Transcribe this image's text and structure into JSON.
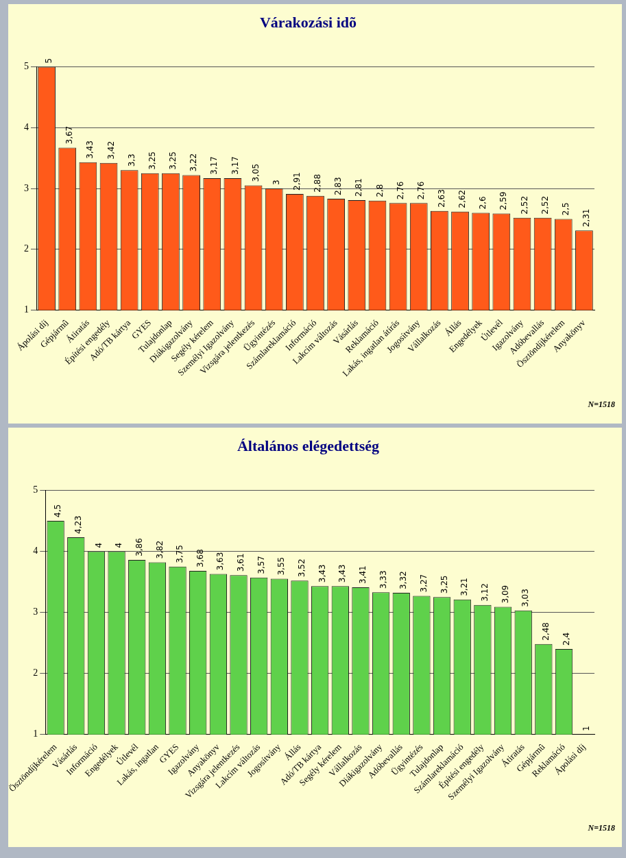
{
  "chart_data": [
    {
      "type": "bar",
      "title": "Várakozási idõ",
      "categories": [
        "Ápolási díj",
        "Gépjármû",
        "Átiratás",
        "Építési engedély",
        "Adó/TB kártya",
        "GYES",
        "Tulajdonlap",
        "Diákigazolvány",
        "Segély kérelem",
        "Személyi Igazolvány",
        "Vizsgára jelentkezés",
        "Ügyintézés",
        "Számlareklamáció",
        "Információ",
        "Lakcím változás",
        "Vásárlás",
        "Reklamáció",
        "Lakás, ingatlan átírás",
        "Jogosítvány",
        "Vállalkozás",
        "Állás",
        "Engedélyek",
        "Útlevél",
        "Igazolvány",
        "Adóbevallás",
        "Ösztöndíjkérelem",
        "Anyakönyv"
      ],
      "values": [
        5,
        3.67,
        3.43,
        3.42,
        3.3,
        3.25,
        3.25,
        3.22,
        3.17,
        3.17,
        3.05,
        3,
        2.91,
        2.88,
        2.83,
        2.81,
        2.8,
        2.76,
        2.76,
        2.63,
        2.62,
        2.6,
        2.59,
        2.52,
        2.52,
        2.5,
        2.31
      ],
      "value_labels": [
        "5",
        "3,67",
        "3,43",
        "3,42",
        "3,3",
        "3,25",
        "3,25",
        "3,22",
        "3,17",
        "3,17",
        "3,05",
        "3",
        "2,91",
        "2,88",
        "2,83",
        "2,81",
        "2,8",
        "2,76",
        "2,76",
        "2,63",
        "2,62",
        "2,6",
        "2,59",
        "2,52",
        "2,52",
        "2,5",
        "2,31"
      ],
      "color": "#ff5a1a",
      "ylim": [
        1,
        5
      ],
      "yticks": [
        1,
        2,
        3,
        4,
        5
      ],
      "grid": "y",
      "annotations": [
        "N=1518"
      ]
    },
    {
      "type": "bar",
      "title": "Általános elégedettség",
      "categories": [
        "Ösztöndíjkérelem",
        "Vásárlás",
        "Információ",
        "Engedélyek",
        "Útlevél",
        "Lakás, ingatlan",
        "GYES",
        "Igazolvány",
        "Anyakönyv",
        "Vizsgára jelentkezés",
        "Lakcím változás",
        "Jogosítvány",
        "Állás",
        "Adó/TB kártya",
        "Segély kérelem",
        "Vállalkozás",
        "Diákigazolvány",
        "Adóbevallás",
        "Ügyintézés",
        "Tulajdonlap",
        "Számlareklamáció",
        "Építési engedély",
        "Személyi Igazolvány",
        "Átiratás",
        "Gépjármû",
        "Reklamáció",
        "Ápolási díj"
      ],
      "values": [
        4.5,
        4.23,
        4,
        4,
        3.86,
        3.82,
        3.75,
        3.68,
        3.63,
        3.61,
        3.57,
        3.55,
        3.52,
        3.43,
        3.43,
        3.41,
        3.33,
        3.32,
        3.27,
        3.25,
        3.21,
        3.12,
        3.09,
        3.03,
        2.48,
        2.4,
        1
      ],
      "value_labels": [
        "4,5",
        "4,23",
        "4",
        "4",
        "3,86",
        "3,82",
        "3,75",
        "3,68",
        "3,63",
        "3,61",
        "3,57",
        "3,55",
        "3,52",
        "3,43",
        "3,43",
        "3,41",
        "3,33",
        "3,32",
        "3,27",
        "3,25",
        "3,21",
        "3,12",
        "3,09",
        "3,03",
        "2,48",
        "2,4",
        "1"
      ],
      "color": "#5fd14b",
      "ylim": [
        1,
        5
      ],
      "yticks": [
        1,
        2,
        3,
        4,
        5
      ],
      "grid": "y",
      "annotations": [
        "N=1518"
      ]
    }
  ]
}
